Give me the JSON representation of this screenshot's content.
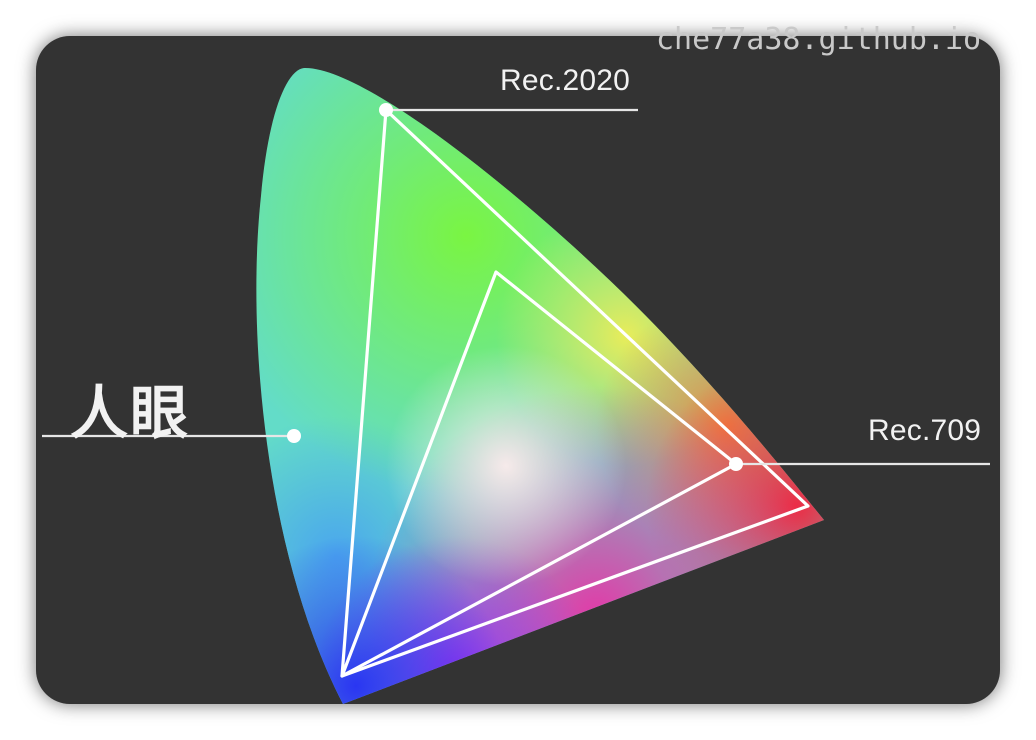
{
  "watermark": "che77a38.github.io",
  "labels": {
    "rec2020": "Rec.2020",
    "rec709": "Rec.709",
    "human_eye": "人眼"
  },
  "colors": {
    "background": "#333333",
    "outline": "#ffffff",
    "label_text": "#f2f2f2"
  }
}
